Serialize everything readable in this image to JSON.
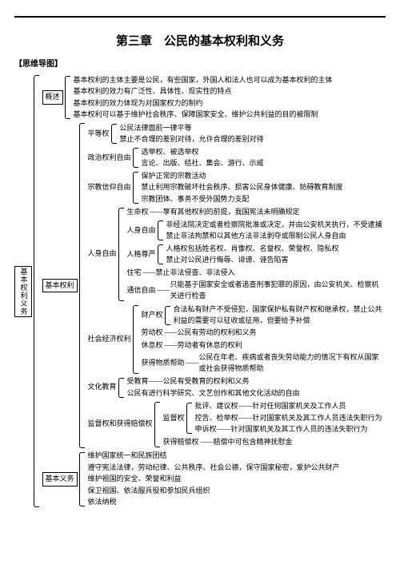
{
  "title": "第三章　公民的基本权利和义务",
  "subtitle": "【思维导图】",
  "root": "基本权利义务",
  "overview": {
    "label": "概述",
    "items": [
      "基本权利的主体主要是公民，有些国家，外国人和法人也可以成为基本权利的主体",
      "基本权利的效力有广泛性、具体性、现实性的特点",
      "基本权利的效力体现为对国家权力的制约",
      "基本权利可以基于维护社会秩序、保障国家安全、维护公共利益的目的被限制"
    ]
  },
  "rights": {
    "label": "基本权利",
    "equality": {
      "label": "平等权",
      "items": [
        "公民法律面前一律平等",
        "禁止不合理的差别对待，允许合理的差别对待"
      ]
    },
    "political": {
      "label": "政治权利自由",
      "items": [
        "选举权、被选举权",
        "言论、出版、结社、集会、游行、示威"
      ]
    },
    "religion": {
      "label": "宗教信仰自由",
      "items": [
        "保护正常的宗教活动",
        "禁止利用宗教破坏社会秩序、损害公民身体健康、妨碍教育制度",
        "宗教团体、事务不受外国势力支配"
      ]
    },
    "personal": {
      "label": "人身自由",
      "life": {
        "label": "生命权",
        "text": "享有其他权利的前提，我国宪法未明确规定"
      },
      "body": {
        "label": "人身自由",
        "items": [
          "非经法院决定或者检察院批准或决定，并由公安机关执行，不受逮捕",
          "禁止非法拘禁和以其他方法非法剥夺或限制公民人身自由"
        ]
      },
      "dignity": {
        "label": "人格尊严",
        "items": [
          "人格权包括姓名权、肖像权、名誉权、荣誉权、隐私权",
          "禁止对公民进行侮辱、诽谤、诬告陷害"
        ]
      },
      "home": {
        "label": "住宅",
        "text": "禁止非法侵查、非法侵入"
      },
      "comm": {
        "label": "通信自由",
        "text": "只能基于国家安全或者追查刑事犯罪的原因，由公安机关、检察机关进行检查"
      }
    },
    "socioecon": {
      "label": "社会经济权利",
      "property": {
        "label": "财产权",
        "items": [
          "合法私有财产不受侵犯，国家保护私有财产权和继承权，禁止公共利益的需要可以征收或征用，但要给予补偿"
        ]
      },
      "labor": {
        "label": "劳动权",
        "text": "公民有劳动的权利和义务"
      },
      "rest": {
        "label": "休息权",
        "text": "劳动者有休息的权利"
      },
      "aid": {
        "label": "获得物质帮助",
        "text": "公民在年老、疾病或者丧失劳动能力的情况下有权从国家或社会获得物质帮助"
      }
    },
    "culture": {
      "label": "文化教育",
      "items": [
        "受教育——公民有受教育的权利和义务",
        "公民有进行科学研究、文艺创作和其他文化活动的自由"
      ]
    },
    "supervise": {
      "label": "监督权和获得赔偿权",
      "super": {
        "label": "监督权",
        "items": [
          "批评、建议权——针对任何国家机关及工作人员",
          "控告、检举权——针对国家机关及其工作人员违法失职行为",
          "申诉权——针对国家机关及其工作人员的违法失职行为"
        ]
      },
      "compensate": {
        "label": "获得赔偿权",
        "text": "赔偿中可包含精神抚慰金"
      }
    }
  },
  "duties": {
    "label": "基本义务",
    "items": [
      "维护国家统一和民族团结",
      "遵守宪法法律，劳动纪律、公共秩序、社会公德，保守国家秘密，爱护公共财产",
      "维护祖国的安全、荣誉和利益",
      "保卫祖国、依法服兵役和参加民兵组织",
      "依法纳税"
    ]
  }
}
